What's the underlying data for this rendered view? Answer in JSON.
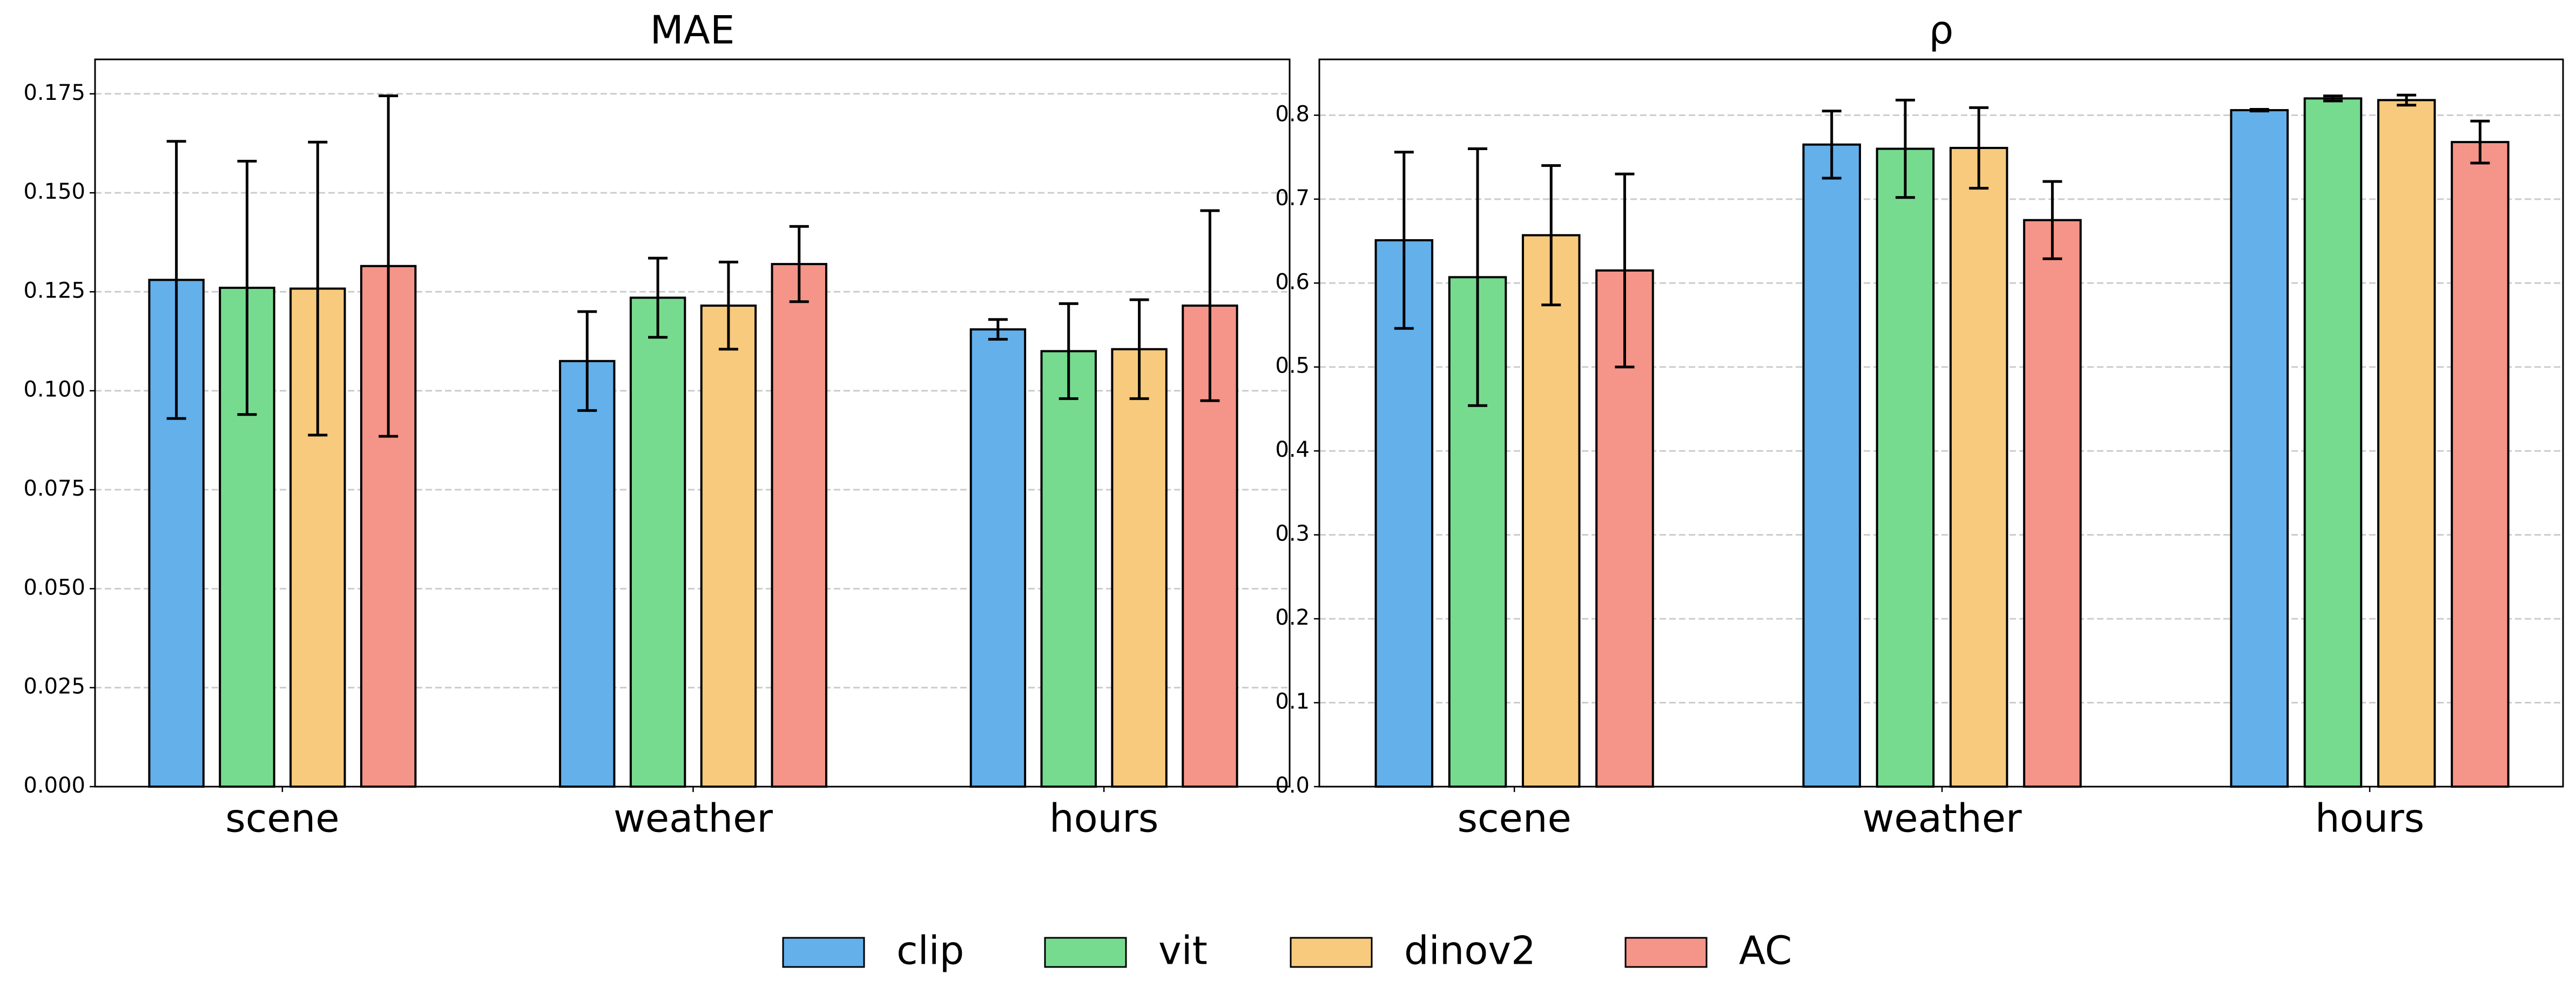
{
  "chart_data": [
    {
      "type": "bar",
      "title": "MAE",
      "categories": [
        "scene",
        "weather",
        "hours"
      ],
      "series": [
        {
          "name": "clip",
          "color": "#63b0eb",
          "values": [
            0.128,
            0.1075,
            0.1155
          ],
          "errors": [
            0.035,
            0.0125,
            0.0025
          ]
        },
        {
          "name": "vit",
          "color": "#77db8f",
          "values": [
            0.126,
            0.1235,
            0.11
          ],
          "errors": [
            0.032,
            0.01,
            0.012
          ]
        },
        {
          "name": "dinov2",
          "color": "#f7ca7d",
          "values": [
            0.1258,
            0.1215,
            0.1105
          ],
          "errors": [
            0.037,
            0.011,
            0.0125
          ]
        },
        {
          "name": "AC",
          "color": "#f59488",
          "values": [
            0.1315,
            0.132,
            0.1215
          ],
          "errors": [
            0.043,
            0.0095,
            0.024
          ]
        }
      ],
      "ylim": [
        0,
        0.1837
      ],
      "yticks": [
        {
          "value": 0,
          "label": "0.000"
        },
        0.025,
        {
          "value": 0.05,
          "label": "0.050"
        },
        0.075,
        {
          "value": 0.1,
          "label": "0.100"
        },
        0.125,
        {
          "value": 0.15,
          "label": "0.150"
        },
        0.175
      ],
      "grid": true
    },
    {
      "type": "bar",
      "title": "ρ",
      "categories": [
        "scene",
        "weather",
        "hours"
      ],
      "series": [
        {
          "values": [
            0.651,
            0.765,
            0.806
          ],
          "errors": [
            0.105,
            0.04,
            0.001
          ]
        },
        {
          "values": [
            0.607,
            0.76,
            0.82
          ],
          "errors": [
            0.153,
            0.058,
            0.003
          ]
        },
        {
          "values": [
            0.657,
            0.761,
            0.818
          ],
          "errors": [
            0.083,
            0.048,
            0.006
          ]
        },
        {
          "values": [
            0.615,
            0.675,
            0.768
          ],
          "errors": [
            0.115,
            0.046,
            0.025
          ]
        }
      ],
      "ylim": [
        0,
        0.8665
      ],
      "yticks": [
        {
          "value": 0,
          "label": "0.0"
        },
        0.1,
        0.2,
        0.3,
        0.4,
        0.5,
        0.6,
        0.7,
        0.8
      ],
      "grid": true
    }
  ]
}
